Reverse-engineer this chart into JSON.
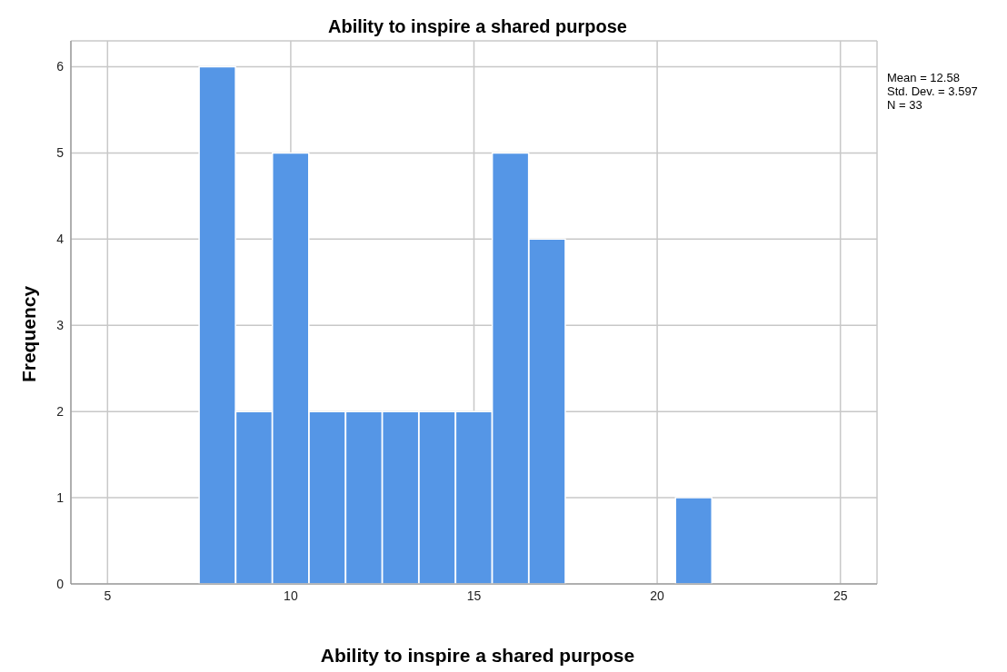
{
  "chart_data": {
    "type": "histogram",
    "title": "Ability to inspire a shared purpose",
    "xlabel": "Ability to inspire a shared purpose",
    "ylabel": "Frequency",
    "bins": [
      7.5,
      8.5,
      9.5,
      10.5,
      11.5,
      12.5,
      13.5,
      14.5,
      15.5,
      16.5,
      17.5,
      18.5,
      19.5,
      20.5,
      21.5
    ],
    "values": [
      6,
      2,
      5,
      2,
      2,
      2,
      2,
      2,
      5,
      4,
      0,
      0,
      0,
      1
    ],
    "color": "#5596e6",
    "xlim": [
      4,
      26
    ],
    "xticks": [
      5,
      10,
      15,
      20,
      25
    ],
    "ylim": [
      0,
      6.3
    ],
    "yticks": [
      0,
      1,
      2,
      3,
      4,
      5,
      6
    ],
    "grid": true,
    "annotations": [
      "Mean = 12.58",
      "Std. Dev. = 3.597",
      "N = 33"
    ]
  }
}
